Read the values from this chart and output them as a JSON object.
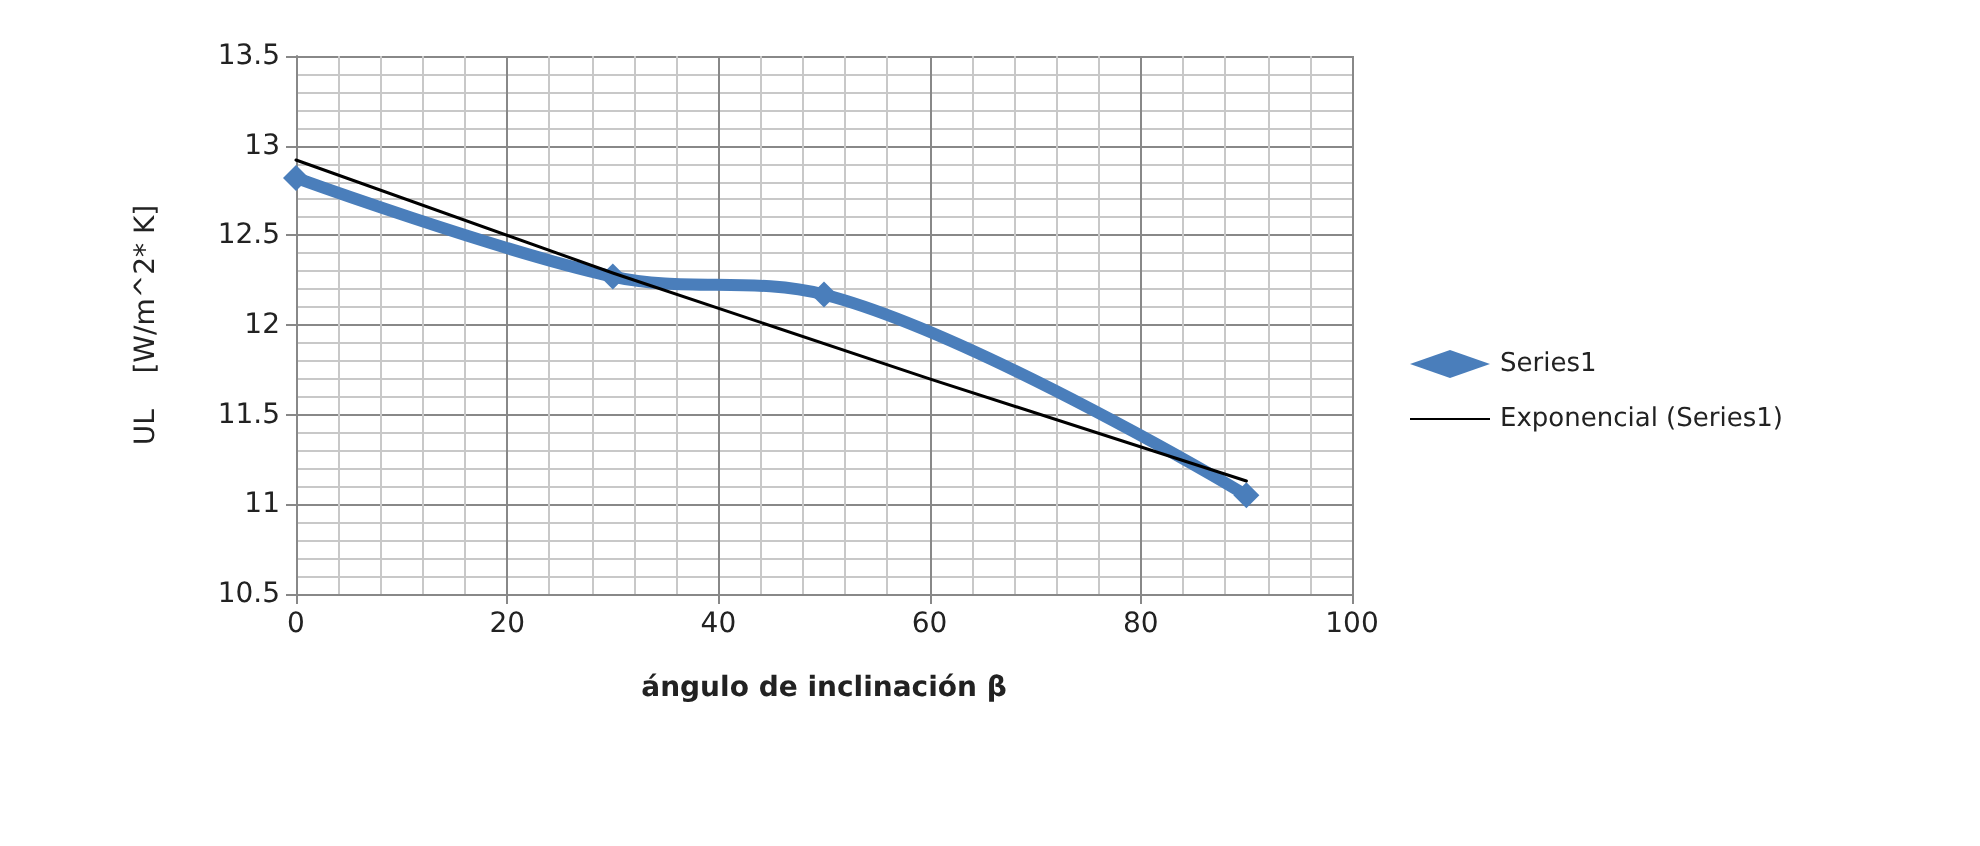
{
  "chart_data": {
    "type": "line",
    "xlabel": "ángulo de inclinación β",
    "ylabel": "UL    [W/m^2* K]",
    "xlim": [
      0,
      100
    ],
    "xticks": [
      0,
      20,
      40,
      60,
      80,
      100
    ],
    "ylim": [
      10.5,
      13.5
    ],
    "yticks": [
      10.5,
      11,
      11.5,
      12,
      12.5,
      13,
      13.5
    ],
    "grid": true,
    "legend": "right",
    "series": [
      {
        "name": "Series1",
        "color": "#4a7ebb",
        "x": [
          0,
          30,
          50,
          90
        ],
        "values": [
          12.82,
          12.27,
          12.17,
          11.05
        ],
        "marker": "diamond",
        "line_style": "solid"
      },
      {
        "name": "Exponencial (Series1)",
        "color": "#000000",
        "x": [
          0,
          30,
          60,
          90
        ],
        "values": [
          12.92,
          12.29,
          11.7,
          11.13
        ],
        "marker": "none",
        "line_style": "solid"
      }
    ]
  }
}
